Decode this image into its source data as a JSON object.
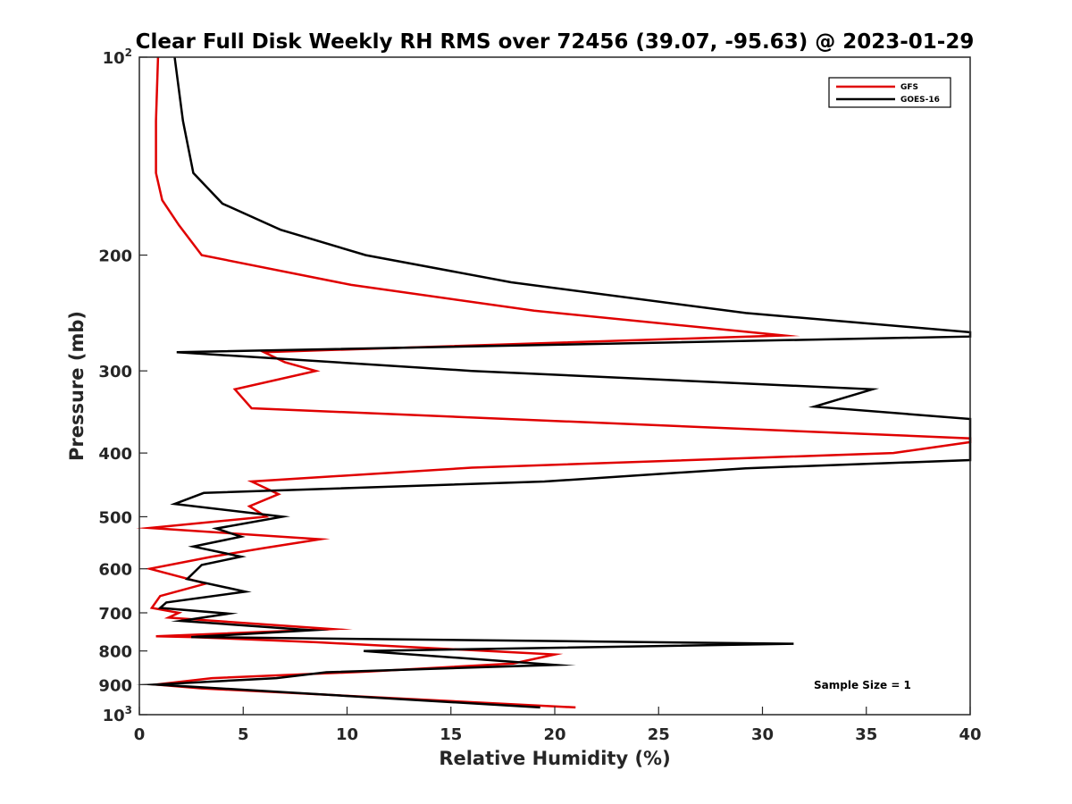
{
  "chart_data": {
    "type": "line",
    "title": "Clear Full Disk Weekly RH RMS over 72456 (39.07, -95.63) @ 2023-01-29",
    "xlabel": "Relative Humidity (%)",
    "ylabel": "Pressure (mb)",
    "xlim": [
      0,
      40
    ],
    "ylim": [
      100,
      1000
    ],
    "yscale": "log",
    "y_reversed": true,
    "grid": false,
    "legend_position": "top-right",
    "x_ticks": [
      "0",
      "5",
      "10",
      "15",
      "20",
      "25",
      "30",
      "35",
      "40"
    ],
    "y_ticks": [
      {
        "value": 100,
        "base": "10",
        "exp": "2"
      },
      {
        "value": 200,
        "label": "200"
      },
      {
        "value": 300,
        "label": "300"
      },
      {
        "value": 400,
        "label": "400"
      },
      {
        "value": 500,
        "label": "500"
      },
      {
        "value": 600,
        "label": "600"
      },
      {
        "value": 700,
        "label": "700"
      },
      {
        "value": 800,
        "label": "800"
      },
      {
        "value": 900,
        "label": "900"
      },
      {
        "value": 1000,
        "base": "10",
        "exp": "3"
      }
    ],
    "annotation": "Sample Size = 1",
    "series": [
      {
        "name": "GFS",
        "color": "#e00000",
        "points": [
          [
            0.9,
            100
          ],
          [
            0.8,
            125
          ],
          [
            0.8,
            150
          ],
          [
            1.1,
            165
          ],
          [
            1.9,
            180
          ],
          [
            3.0,
            200
          ],
          [
            10.2,
            222
          ],
          [
            19.0,
            243
          ],
          [
            31.0,
            265
          ],
          [
            6.0,
            281
          ],
          [
            7.0,
            291
          ],
          [
            8.5,
            300
          ],
          [
            4.6,
            320
          ],
          [
            5.4,
            342
          ],
          [
            40.0,
            380
          ],
          [
            40.0,
            385
          ],
          [
            36.3,
            400
          ],
          [
            16.0,
            421
          ],
          [
            5.4,
            442
          ],
          [
            6.7,
            462
          ],
          [
            5.3,
            482
          ],
          [
            6.1,
            500
          ],
          [
            0.5,
            520
          ],
          [
            8.7,
            541
          ],
          [
            6.0,
            558
          ],
          [
            3.5,
            575
          ],
          [
            0.5,
            600
          ],
          [
            3.2,
            632
          ],
          [
            1.0,
            660
          ],
          [
            0.6,
            688
          ],
          [
            1.9,
            700
          ],
          [
            1.4,
            712
          ],
          [
            9.3,
            741
          ],
          [
            0.8,
            760
          ],
          [
            2.5,
            762
          ],
          [
            8.5,
            776
          ],
          [
            20.0,
            810
          ],
          [
            18.0,
            836
          ],
          [
            11.0,
            860
          ],
          [
            3.5,
            880
          ],
          [
            0.8,
            900
          ],
          [
            3.0,
            912
          ],
          [
            21.0,
            975
          ]
        ]
      },
      {
        "name": "GOES-16",
        "color": "#000000",
        "points": [
          [
            1.7,
            100
          ],
          [
            2.1,
            125
          ],
          [
            2.6,
            150
          ],
          [
            4.0,
            167
          ],
          [
            6.8,
            183
          ],
          [
            10.9,
            200
          ],
          [
            17.9,
            220
          ],
          [
            29.2,
            245
          ],
          [
            40.0,
            262
          ],
          [
            40.0,
            266
          ],
          [
            1.8,
            281
          ],
          [
            16.0,
            300
          ],
          [
            35.3,
            320
          ],
          [
            32.5,
            340
          ],
          [
            40.0,
            355
          ],
          [
            40.0,
            410
          ],
          [
            29.2,
            422
          ],
          [
            19.5,
            442
          ],
          [
            3.1,
            460
          ],
          [
            1.7,
            478
          ],
          [
            6.9,
            500
          ],
          [
            3.7,
            521
          ],
          [
            4.9,
            536
          ],
          [
            2.6,
            555
          ],
          [
            4.9,
            575
          ],
          [
            3.0,
            592
          ],
          [
            2.3,
            622
          ],
          [
            5.1,
            650
          ],
          [
            1.3,
            675
          ],
          [
            1.0,
            688
          ],
          [
            4.3,
            702
          ],
          [
            2.0,
            720
          ],
          [
            8.3,
            744
          ],
          [
            2.5,
            762
          ],
          [
            31.5,
            780
          ],
          [
            10.8,
            800
          ],
          [
            20.0,
            840
          ],
          [
            9.0,
            862
          ],
          [
            6.6,
            880
          ],
          [
            0.8,
            900
          ],
          [
            19.3,
            975
          ]
        ]
      }
    ]
  }
}
